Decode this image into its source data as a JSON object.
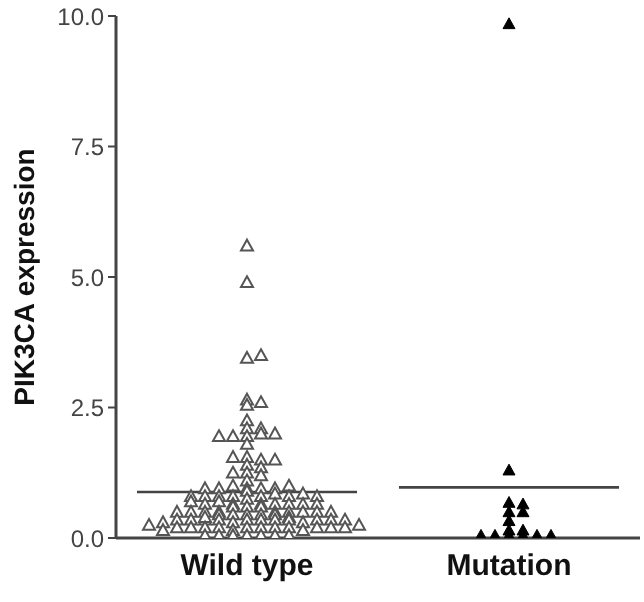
{
  "chart_data": {
    "type": "scatter",
    "ylabel": "PIK3CA expression",
    "categories": [
      "Wild type",
      "Mutation"
    ],
    "ylim": [
      0,
      10
    ],
    "yticks": [
      {
        "value": 0,
        "label": "0.0"
      },
      {
        "value": 2.5,
        "label": "2.5"
      },
      {
        "value": 5,
        "label": "5.0"
      },
      {
        "value": 7.5,
        "label": "7.5"
      },
      {
        "value": 10,
        "label": "10.0"
      }
    ],
    "marker": "triangle",
    "grid": false,
    "legend": false,
    "series": [
      {
        "type": "scatter",
        "color": "#555555",
        "x": [
          "Wild type",
          "Wild type",
          "Wild type",
          "Wild type",
          "Wild type",
          "Wild type",
          "Wild type",
          "Wild type",
          "Wild type",
          "Wild type",
          "Wild type",
          "Wild type",
          "Wild type",
          "Wild type",
          "Wild type",
          "Wild type",
          "Wild type",
          "Wild type",
          "Wild type",
          "Wild type",
          "Wild type",
          "Wild type",
          "Wild type",
          "Wild type",
          "Wild type",
          "Wild type",
          "Wild type",
          "Wild type",
          "Wild type",
          "Wild type",
          "Wild type",
          "Wild type",
          "Wild type",
          "Wild type",
          "Wild type",
          "Wild type",
          "Wild type",
          "Wild type",
          "Wild type",
          "Wild type",
          "Wild type",
          "Wild type",
          "Wild type",
          "Wild type",
          "Wild type",
          "Wild type",
          "Wild type",
          "Wild type",
          "Wild type",
          "Wild type",
          "Wild type",
          "Wild type",
          "Wild type",
          "Wild type",
          "Wild type",
          "Wild type",
          "Wild type",
          "Wild type",
          "Wild type",
          "Wild type",
          "Wild type",
          "Wild type",
          "Wild type",
          "Wild type",
          "Wild type",
          "Wild type",
          "Wild type",
          "Wild type",
          "Wild type",
          "Wild type",
          "Wild type",
          "Wild type",
          "Wild type",
          "Wild type",
          "Wild type",
          "Wild type",
          "Wild type",
          "Wild type",
          "Wild type",
          "Wild type",
          "Wild type",
          "Wild type",
          "Wild type",
          "Wild type",
          "Wild type",
          "Wild type",
          "Wild type",
          "Wild type",
          "Wild type",
          "Wild type",
          "Wild type",
          "Wild type",
          "Wild type",
          "Wild type",
          "Wild type",
          "Wild type",
          "Wild type",
          "Wild type",
          "Wild type",
          "Wild type",
          "Wild type",
          "Wild type",
          "Wild type",
          "Wild type",
          "Wild type",
          "Wild type",
          "Wild type",
          "Wild type",
          "Wild type"
        ],
        "values": [
          5.6,
          4.9,
          3.45,
          3.5,
          2.65,
          2.55,
          2.6,
          2.25,
          2.1,
          2.1,
          1.95,
          2.0,
          1.95,
          2.0,
          1.95,
          1.8,
          1.55,
          1.5,
          1.55,
          1.5,
          1.4,
          1.35,
          1.25,
          1.2,
          1.25,
          1.1,
          0.95,
          0.95,
          1.0,
          0.95,
          0.9,
          0.95,
          1.0,
          0.95,
          0.8,
          0.8,
          0.85,
          0.8,
          0.8,
          0.75,
          0.8,
          0.85,
          0.8,
          0.8,
          0.65,
          0.65,
          0.6,
          0.65,
          0.7,
          0.65,
          0.6,
          0.65,
          0.65,
          0.7,
          0.6,
          0.65,
          0.5,
          0.45,
          0.5,
          0.5,
          0.45,
          0.5,
          0.5,
          0.45,
          0.5,
          0.5,
          0.45,
          0.5,
          0.5,
          0.45,
          0.35,
          0.35,
          0.3,
          0.35,
          0.35,
          0.4,
          0.35,
          0.35,
          0.3,
          0.35,
          0.35,
          0.4,
          0.35,
          0.35,
          0.3,
          0.35,
          0.2,
          0.2,
          0.15,
          0.2,
          0.2,
          0.25,
          0.2,
          0.2,
          0.15,
          0.2,
          0.2,
          0.25,
          0.2,
          0.2,
          0.15,
          0.2,
          0.05,
          0.05,
          0.05,
          0.05,
          0.05,
          0.05,
          0.05
        ]
      },
      {
        "type": "scatter",
        "color": "#000000",
        "x": [
          "Mutation",
          "Mutation",
          "Mutation",
          "Mutation",
          "Mutation",
          "Mutation",
          "Mutation",
          "Mutation",
          "Mutation",
          "Mutation",
          "Mutation",
          "Mutation",
          "Mutation",
          "Mutation",
          "Mutation"
        ],
        "values": [
          9.85,
          1.3,
          0.68,
          0.65,
          0.5,
          0.5,
          0.33,
          0.15,
          0.15,
          0.05,
          0.05,
          0.05,
          0.05,
          0.05,
          0.05
        ]
      }
    ],
    "ref_lines": [
      {
        "axis": "y",
        "value": 0.88,
        "color": "#444444"
      },
      {
        "axis": "y",
        "value": 0.97,
        "color": "#444444"
      }
    ]
  }
}
